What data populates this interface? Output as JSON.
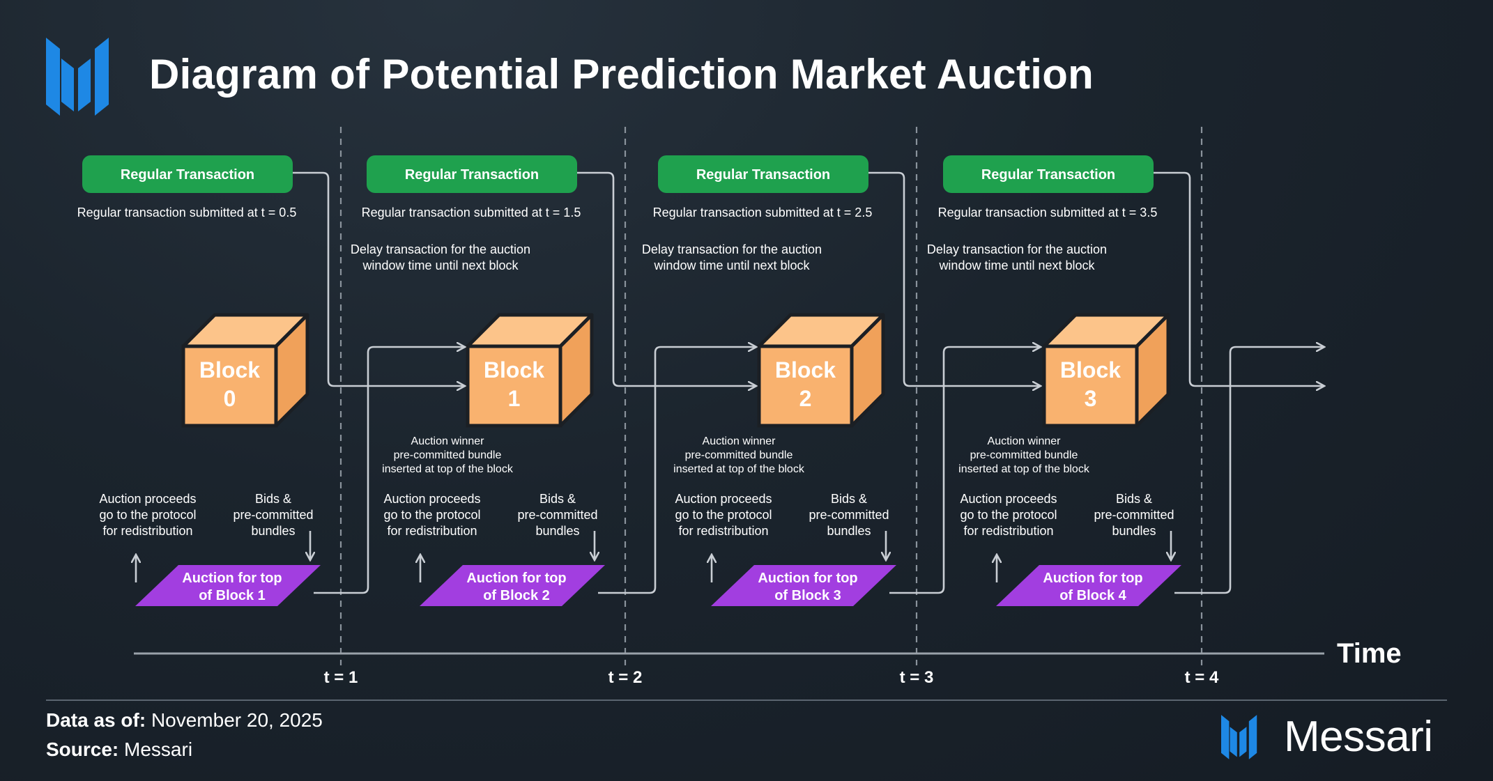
{
  "title": "Diagram of Potential Prediction Market Auction",
  "colors": {
    "green": "#1fa14e",
    "block_front": "#f9b26f",
    "block_top": "#fcc48a",
    "block_side": "#f0a15a",
    "purple": "#a23ee0",
    "line": "#c9ced4",
    "accent_blue": "#1e88e5"
  },
  "stages": [
    {
      "green_label": "Regular Transaction",
      "submitted_note": "Regular transaction submitted at t = 0.5",
      "delay_note": "",
      "block_word": "Block",
      "block_num": "0",
      "winner_note": "",
      "proceeds_note": "Auction proceeds\ngo to the protocol\nfor redistribution",
      "bids_note": "Bids &\npre-committed\nbundles",
      "auction_label": "Auction for top\nof Block 1",
      "time_label": "t = 1"
    },
    {
      "green_label": "Regular Transaction",
      "submitted_note": "Regular transaction submitted at t = 1.5",
      "delay_note": "Delay transaction for the auction\nwindow time until next block",
      "block_word": "Block",
      "block_num": "1",
      "winner_note": "Auction winner\npre-committed bundle\ninserted at top of the block",
      "proceeds_note": "Auction proceeds\ngo to the protocol\nfor redistribution",
      "bids_note": "Bids &\npre-committed\nbundles",
      "auction_label": "Auction for top\nof Block 2",
      "time_label": "t = 2"
    },
    {
      "green_label": "Regular Transaction",
      "submitted_note": "Regular transaction submitted at t = 2.5",
      "delay_note": "Delay transaction for the auction\nwindow time until next block",
      "block_word": "Block",
      "block_num": "2",
      "winner_note": "Auction winner\npre-committed bundle\ninserted at top of the block",
      "proceeds_note": "Auction proceeds\ngo to the protocol\nfor redistribution",
      "bids_note": "Bids &\npre-committed\nbundles",
      "auction_label": "Auction for top\nof Block 3",
      "time_label": "t = 3"
    },
    {
      "green_label": "Regular Transaction",
      "submitted_note": "Regular transaction submitted at t = 3.5",
      "delay_note": "Delay transaction for the auction\nwindow time until next block",
      "block_word": "Block",
      "block_num": "3",
      "winner_note": "Auction winner\npre-committed bundle\ninserted at top of the block",
      "proceeds_note": "Auction proceeds\ngo to the protocol\nfor redistribution",
      "bids_note": "Bids &\npre-committed\nbundles",
      "auction_label": "Auction for top\nof Block 4",
      "time_label": "t = 4"
    }
  ],
  "axis_label": "Time",
  "footer": {
    "date_label": "Data as of:",
    "date_value": "November 20, 2025",
    "source_label": "Source:",
    "source_value": "Messari"
  },
  "brand": {
    "name": "Messari",
    "logo_icon": "messari-logo-icon"
  }
}
